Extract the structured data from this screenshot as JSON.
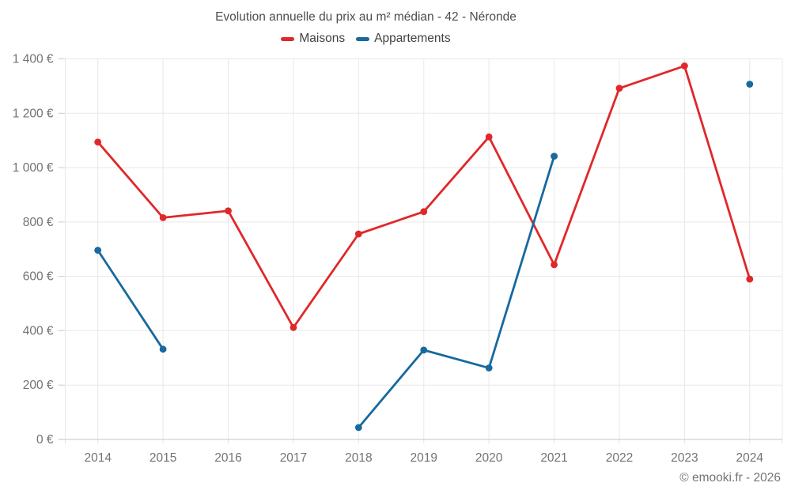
{
  "header": {
    "title": "Evolution annuelle du prix au m² médian - 42 - Néronde"
  },
  "legend": [
    {
      "label": "Maisons",
      "color": "#e0282a"
    },
    {
      "label": "Appartements",
      "color": "#17699e"
    }
  ],
  "footer": {
    "credit": "© emooki.fr - 2026"
  },
  "chart_data": {
    "type": "line",
    "title": "Evolution annuelle du prix au m² médian - 42 - Néronde",
    "categories": [
      "2014",
      "2015",
      "2016",
      "2017",
      "2018",
      "2019",
      "2020",
      "2021",
      "2022",
      "2023",
      "2024"
    ],
    "series": [
      {
        "name": "Maisons",
        "color": "#e0282a",
        "values": [
          1094,
          816,
          841,
          412,
          756,
          838,
          1113,
          643,
          1292,
          1374,
          590
        ]
      },
      {
        "name": "Appartements",
        "color": "#17699e",
        "values": [
          696,
          332,
          null,
          null,
          44,
          329,
          263,
          1042,
          null,
          null,
          1307
        ]
      }
    ],
    "xlabel": "",
    "ylabel": "",
    "ylim": [
      0,
      1400
    ],
    "ytick_step": 200,
    "ytick_labels": [
      "0 €",
      "200 €",
      "400 €",
      "600 €",
      "800 €",
      "1 000 €",
      "1 200 €",
      "1 400 €"
    ],
    "grid": true,
    "legend_position": "top",
    "colors": {
      "gridline": "#e8e8e8",
      "axis_line": "#c6c6c6",
      "tick": "#cccccc",
      "axis_text": "#737373"
    }
  }
}
